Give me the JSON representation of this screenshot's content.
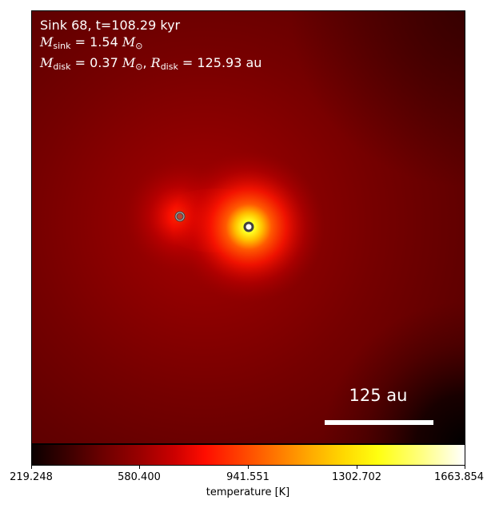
{
  "info": {
    "line1": "Sink 68, t=108.29 kyr",
    "msink_symbol": "M",
    "msink_sub": "sink",
    "msink_value": "= 1.54",
    "msun_symbol": "M",
    "msun_sub": "⊙",
    "mdisk_symbol": "M",
    "mdisk_sub": "disk",
    "mdisk_value": "= 0.37",
    "mdisk_unit_symbol": "M",
    "mdisk_unit_sub": "⊙",
    "comma": ",",
    "rdisk_symbol": "R",
    "rdisk_sub": "disk",
    "rdisk_value": "= 125.93 au"
  },
  "scale_bar": {
    "label": "125 au"
  },
  "colorbar": {
    "ticks": [
      "219.248",
      "580.400",
      "941.551",
      "1302.702",
      "1663.854"
    ],
    "label": "temperature [K]",
    "colormap": "hot"
  },
  "sinks": [
    {
      "name": "sink-secondary",
      "color": "#ffffff"
    },
    {
      "name": "sink-primary",
      "color": "#ffffff"
    }
  ],
  "colors": {
    "background_field": "#6a0000",
    "hot_core": "#ffff20"
  }
}
